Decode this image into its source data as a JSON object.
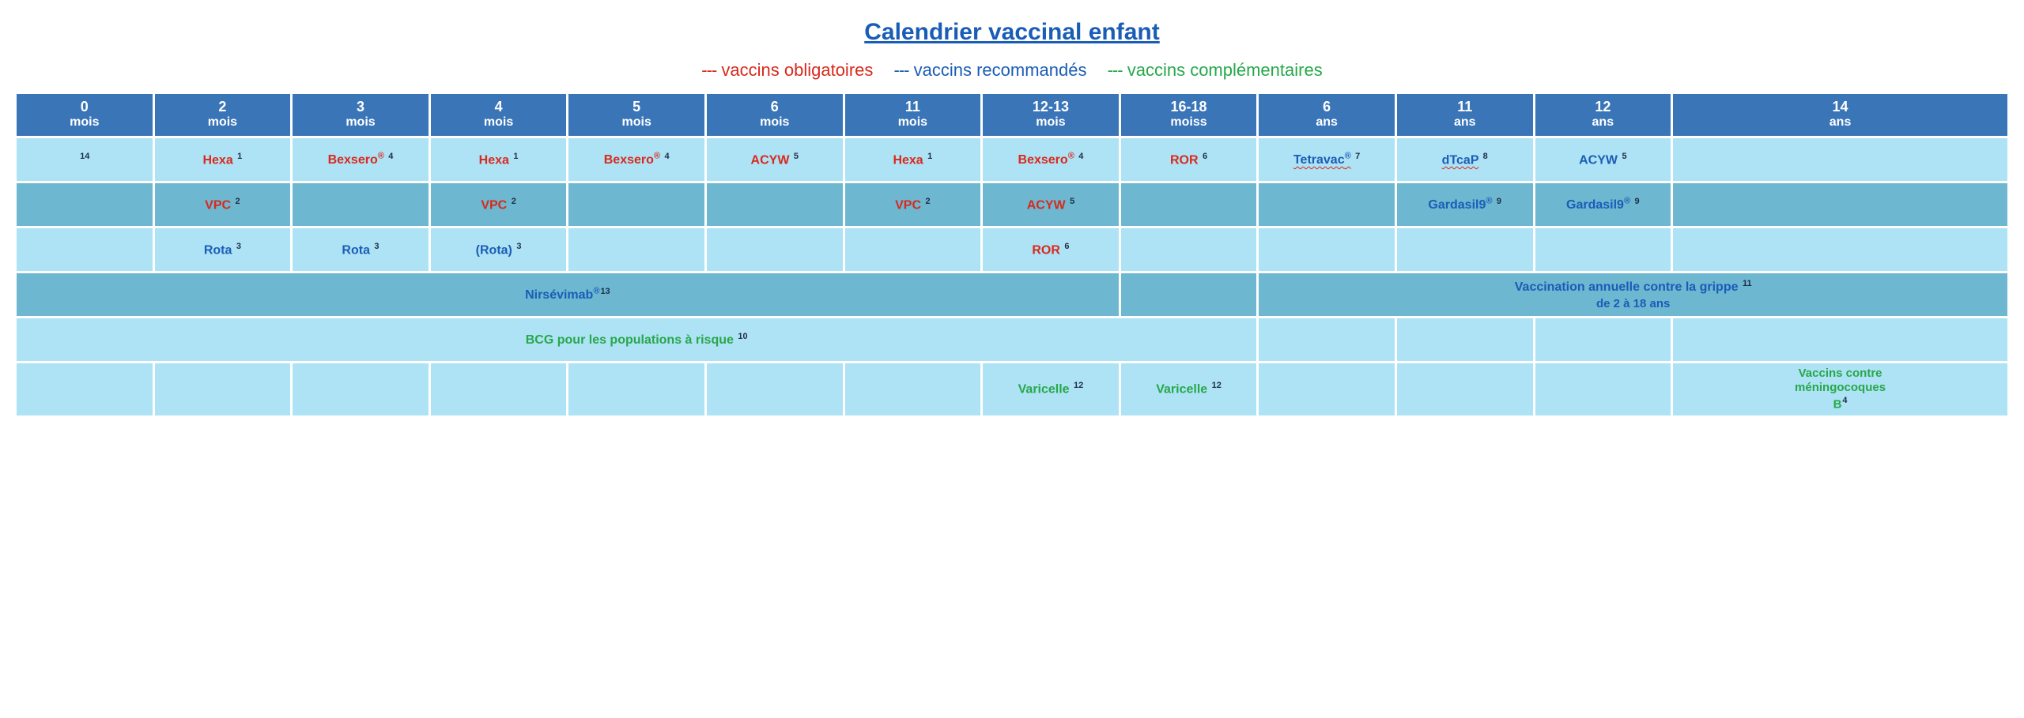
{
  "title": "Calendrier vaccinal enfant",
  "legend": {
    "obligatoires": {
      "dashes": "---",
      "label": "vaccins obligatoires",
      "color": "red"
    },
    "recommandes": {
      "dashes": "---",
      "label": "vaccins recommandés",
      "color": "blue"
    },
    "complementaires": {
      "dashes": "---",
      "label": "vaccins complémentaires",
      "color": "green"
    }
  },
  "columns": [
    {
      "num": "0",
      "unit": "mois"
    },
    {
      "num": "2",
      "unit": "mois"
    },
    {
      "num": "3",
      "unit": "mois"
    },
    {
      "num": "4",
      "unit": "mois"
    },
    {
      "num": "5",
      "unit": "mois"
    },
    {
      "num": "6",
      "unit": "mois"
    },
    {
      "num": "11",
      "unit": "mois"
    },
    {
      "num": "12-13",
      "unit": "mois"
    },
    {
      "num": "16-18",
      "unit": "moiss"
    },
    {
      "num": "6",
      "unit": "ans"
    },
    {
      "num": "11",
      "unit": "ans"
    },
    {
      "num": "12",
      "unit": "ans"
    },
    {
      "num": "14",
      "unit": "ans"
    }
  ],
  "row1": {
    "c0": {
      "label": "",
      "sup": "14",
      "supColor": "dark"
    },
    "c1": {
      "label": "Hexa",
      "sup": "1",
      "color": "red"
    },
    "c2": {
      "label": "Bexsero",
      "reg": "®",
      "sup": "4",
      "color": "red"
    },
    "c3": {
      "label": "Hexa",
      "sup": "1",
      "color": "red"
    },
    "c4": {
      "label": "Bexsero",
      "reg": "®",
      "sup": "4",
      "color": "red"
    },
    "c5": {
      "label": "ACYW",
      "sup": "5",
      "color": "red"
    },
    "c6": {
      "label": "Hexa",
      "sup": "1",
      "color": "red"
    },
    "c7": {
      "label": "Bexsero",
      "reg": "®",
      "sup": "4",
      "color": "red"
    },
    "c8": {
      "label": "ROR",
      "sup": "6",
      "color": "red"
    },
    "c9": {
      "label": "Tetravac",
      "reg": "®",
      "sup": "7",
      "color": "blue",
      "wavy": true
    },
    "c10": {
      "label": "dTcaP",
      "sup": "8",
      "color": "blue",
      "wavy": true
    },
    "c11": {
      "label": "ACYW",
      "sup": "5",
      "color": "blue"
    }
  },
  "row2": {
    "c1": {
      "label": "VPC",
      "sup": "2",
      "color": "red"
    },
    "c3": {
      "label": "VPC",
      "sup": "2",
      "color": "red"
    },
    "c6": {
      "label": "VPC",
      "sup": "2",
      "color": "red"
    },
    "c7": {
      "label": "ACYW",
      "sup": "5",
      "color": "red"
    },
    "c10": {
      "label": "Gardasil9",
      "reg": "®",
      "sup": "9",
      "color": "blue"
    },
    "c11": {
      "label": "Gardasil9",
      "reg": "®",
      "sup": "9",
      "color": "blue"
    }
  },
  "row3": {
    "c1": {
      "label": "Rota",
      "sup": "3",
      "color": "blue"
    },
    "c2": {
      "label": "Rota",
      "sup": "3",
      "color": "blue"
    },
    "c3": {
      "label": "(Rota)",
      "sup": "3",
      "color": "blue"
    },
    "c7": {
      "label": "ROR",
      "sup": "6",
      "color": "red"
    }
  },
  "row4": {
    "left": {
      "label": "Nirsévimab",
      "reg": "®",
      "sup": "13",
      "color": "blue"
    },
    "right": {
      "label": "Vaccination annuelle contre la grippe",
      "sup": "11",
      "sub": "de 2 à 18 ans",
      "color": "blue"
    }
  },
  "row5": {
    "left": {
      "label": "BCG pour les populations à risque",
      "sup": "10",
      "color": "green"
    }
  },
  "row6": {
    "c7": {
      "label": "Varicelle",
      "sup": "12",
      "color": "green"
    },
    "c8": {
      "label": "Varicelle",
      "sup": "12",
      "color": "green"
    },
    "c12": {
      "label": "Vaccins contre méningocoques B",
      "sup": "4",
      "color": "green"
    }
  },
  "colors": {
    "header_bg": "#3a75b8",
    "row_light": "#aee2f5",
    "row_mid": "#6db7d1",
    "red": "#d9291c",
    "blue": "#1a5db6",
    "green": "#27a84a"
  }
}
